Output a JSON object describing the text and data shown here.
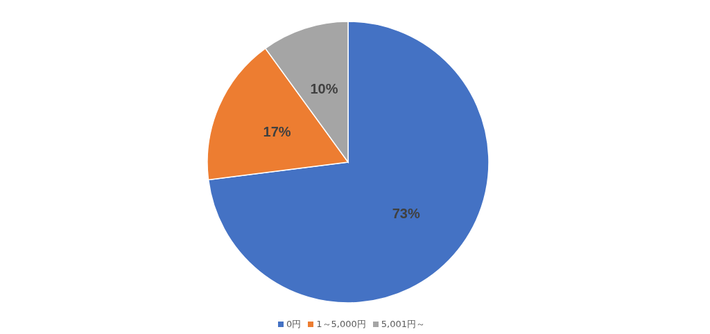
{
  "chart_data": {
    "type": "pie",
    "categories": [
      "0円",
      "1～5,000円",
      "5,001円～"
    ],
    "values": [
      73,
      17,
      10
    ],
    "colors": [
      "#4472c4",
      "#ed7d31",
      "#a5a5a5"
    ],
    "value_labels": [
      "73%",
      "17%",
      "10%"
    ],
    "legend": "bottom"
  }
}
